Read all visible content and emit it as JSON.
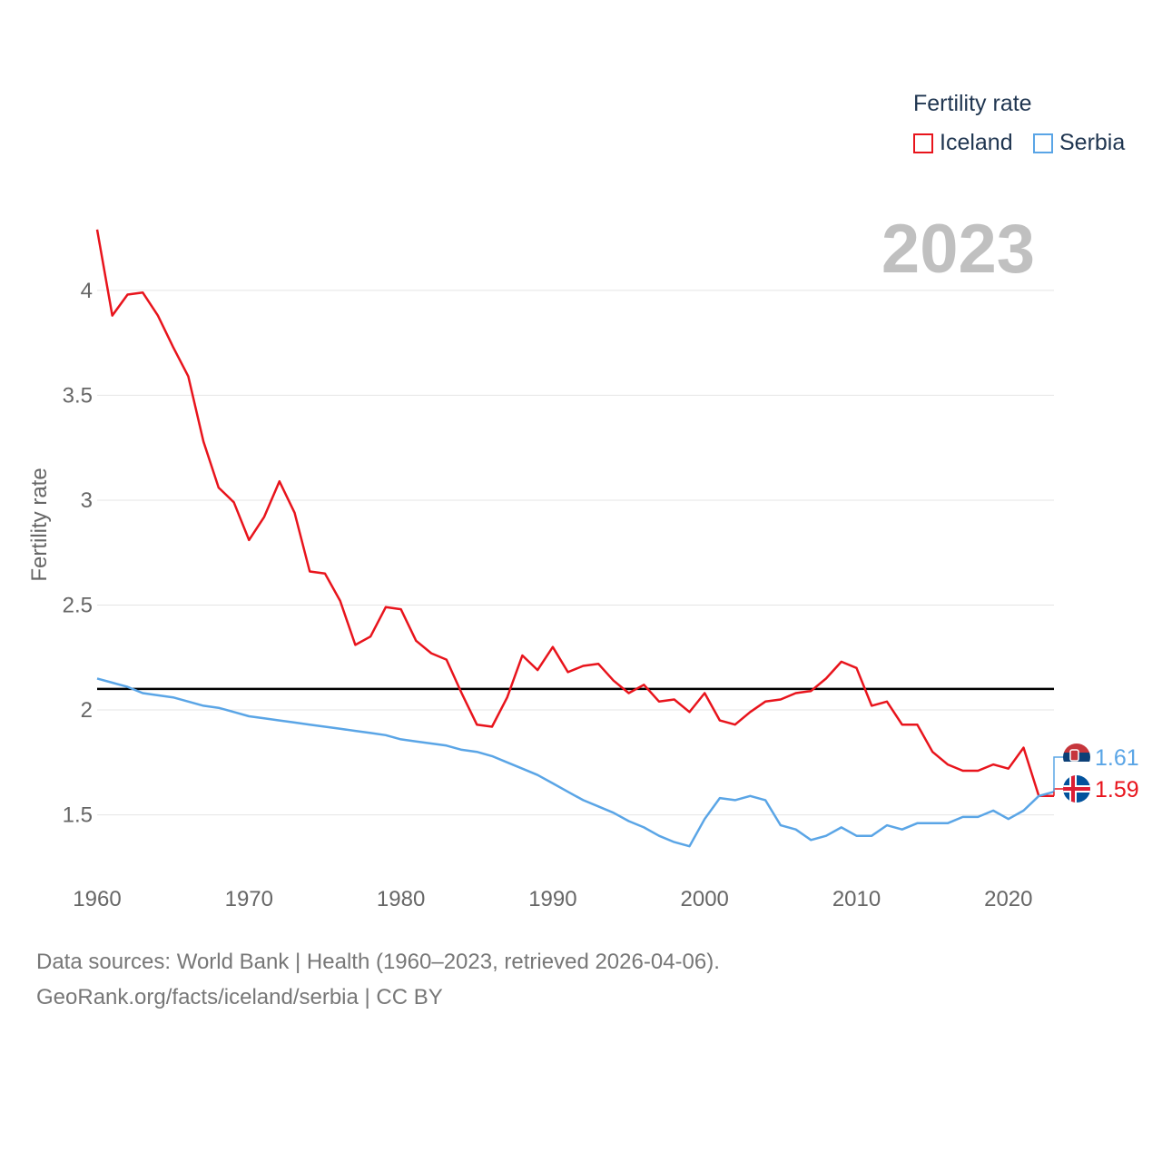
{
  "legend": {
    "title": "Fertility rate",
    "items": [
      {
        "name": "Iceland",
        "color": "#e8141c"
      },
      {
        "name": "Serbia",
        "color": "#5aa5e6"
      }
    ]
  },
  "year_label": "2023",
  "footer": {
    "line1": "Data sources: World Bank | Health (1960–2023, retrieved 2026-04-06).",
    "line2": "GeoRank.org/facts/iceland/serbia | CC BY"
  },
  "chart_data": {
    "type": "line",
    "title": "",
    "xlabel": "",
    "ylabel": "Fertility rate",
    "xlim": [
      1960,
      2023
    ],
    "ylim": [
      1.1,
      4.35
    ],
    "x_ticks": [
      "1960",
      "1970",
      "1980",
      "1990",
      "2000",
      "2010",
      "2020"
    ],
    "y_ticks": [
      "1.5",
      "2",
      "2.5",
      "3",
      "3.5",
      "4"
    ],
    "reference_line": 2.1,
    "x": [
      1960,
      1961,
      1962,
      1963,
      1964,
      1965,
      1966,
      1967,
      1968,
      1969,
      1970,
      1971,
      1972,
      1973,
      1974,
      1975,
      1976,
      1977,
      1978,
      1979,
      1980,
      1981,
      1982,
      1983,
      1984,
      1985,
      1986,
      1987,
      1988,
      1989,
      1990,
      1991,
      1992,
      1993,
      1994,
      1995,
      1996,
      1997,
      1998,
      1999,
      2000,
      2001,
      2002,
      2003,
      2004,
      2005,
      2006,
      2007,
      2008,
      2009,
      2010,
      2011,
      2012,
      2013,
      2014,
      2015,
      2016,
      2017,
      2018,
      2019,
      2020,
      2021,
      2022,
      2023
    ],
    "series": [
      {
        "name": "Iceland",
        "color": "#e8141c",
        "end_label": "1.59",
        "values": [
          4.29,
          3.88,
          3.98,
          3.99,
          3.88,
          3.73,
          3.59,
          3.28,
          3.06,
          2.99,
          2.81,
          2.92,
          3.09,
          2.94,
          2.66,
          2.65,
          2.52,
          2.31,
          2.35,
          2.49,
          2.48,
          2.33,
          2.27,
          2.24,
          2.08,
          1.93,
          1.92,
          2.06,
          2.26,
          2.19,
          2.3,
          2.18,
          2.21,
          2.22,
          2.14,
          2.08,
          2.12,
          2.04,
          2.05,
          1.99,
          2.08,
          1.95,
          1.93,
          1.99,
          2.04,
          2.05,
          2.08,
          2.09,
          2.15,
          2.23,
          2.2,
          2.02,
          2.04,
          1.93,
          1.93,
          1.8,
          1.74,
          1.71,
          1.71,
          1.74,
          1.72,
          1.82,
          1.59,
          1.59
        ]
      },
      {
        "name": "Serbia",
        "color": "#5aa5e6",
        "end_label": "1.61",
        "values": [
          2.15,
          2.13,
          2.11,
          2.08,
          2.07,
          2.06,
          2.04,
          2.02,
          2.01,
          1.99,
          1.97,
          1.96,
          1.95,
          1.94,
          1.93,
          1.92,
          1.91,
          1.9,
          1.89,
          1.88,
          1.86,
          1.85,
          1.84,
          1.83,
          1.81,
          1.8,
          1.78,
          1.75,
          1.72,
          1.69,
          1.65,
          1.61,
          1.57,
          1.54,
          1.51,
          1.47,
          1.44,
          1.4,
          1.37,
          1.35,
          1.48,
          1.58,
          1.57,
          1.59,
          1.57,
          1.45,
          1.43,
          1.38,
          1.4,
          1.44,
          1.4,
          1.4,
          1.45,
          1.43,
          1.46,
          1.46,
          1.46,
          1.49,
          1.49,
          1.52,
          1.48,
          1.52,
          1.59,
          1.61
        ]
      }
    ]
  }
}
